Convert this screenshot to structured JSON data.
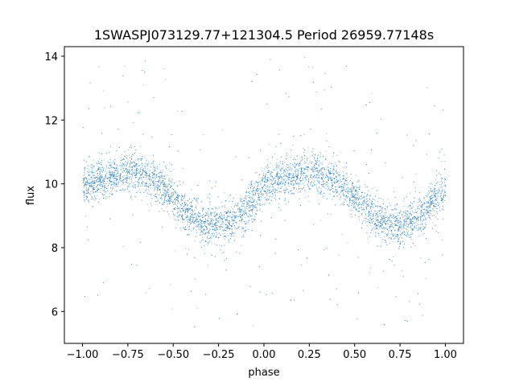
{
  "chart_data": {
    "type": "scatter",
    "title": "1SWASPJ073129.77+121304.5 Period 26959.77148s",
    "xlabel": "phase",
    "ylabel": "flux",
    "xlim": [
      -1.1,
      1.1
    ],
    "ylim": [
      5.0,
      14.3
    ],
    "xticks": [
      -1.0,
      -0.75,
      -0.5,
      -0.25,
      0.0,
      0.25,
      0.5,
      0.75,
      1.0
    ],
    "xtick_labels": [
      "−1.00",
      "−0.75",
      "−0.50",
      "−0.25",
      "0.00",
      "0.25",
      "0.50",
      "0.75",
      "1.00"
    ],
    "yticks": [
      6,
      8,
      10,
      12,
      14
    ],
    "ytick_labels": [
      "6",
      "8",
      "10",
      "12",
      "14"
    ],
    "grid": false,
    "marker_color": "#1f77b4",
    "series": [
      {
        "x": [
          -1.0,
          -0.95,
          -0.9,
          -0.85,
          -0.8,
          -0.75,
          -0.7,
          -0.65,
          -0.6,
          -0.55,
          -0.5,
          -0.45,
          -0.4,
          -0.35,
          -0.3,
          -0.25,
          -0.2,
          -0.15,
          -0.1,
          -0.05,
          0.0,
          0.05,
          0.1,
          0.15,
          0.2,
          0.25,
          0.3,
          0.35,
          0.4,
          0.45,
          0.5,
          0.55,
          0.6,
          0.65,
          0.7,
          0.75,
          0.8,
          0.85,
          0.9,
          0.95,
          1.0
        ],
        "y": [
          9.9,
          10.05,
          10.15,
          10.25,
          10.35,
          10.4,
          10.4,
          10.3,
          10.1,
          9.85,
          9.55,
          9.25,
          9.0,
          8.8,
          8.7,
          8.72,
          8.8,
          8.95,
          9.25,
          9.6,
          9.9,
          10.05,
          10.15,
          10.25,
          10.35,
          10.4,
          10.4,
          10.3,
          10.1,
          9.85,
          9.55,
          9.25,
          9.0,
          8.8,
          8.7,
          8.72,
          8.8,
          8.95,
          9.25,
          9.6,
          9.9
        ],
        "scatter_sd": 0.3
      }
    ]
  }
}
